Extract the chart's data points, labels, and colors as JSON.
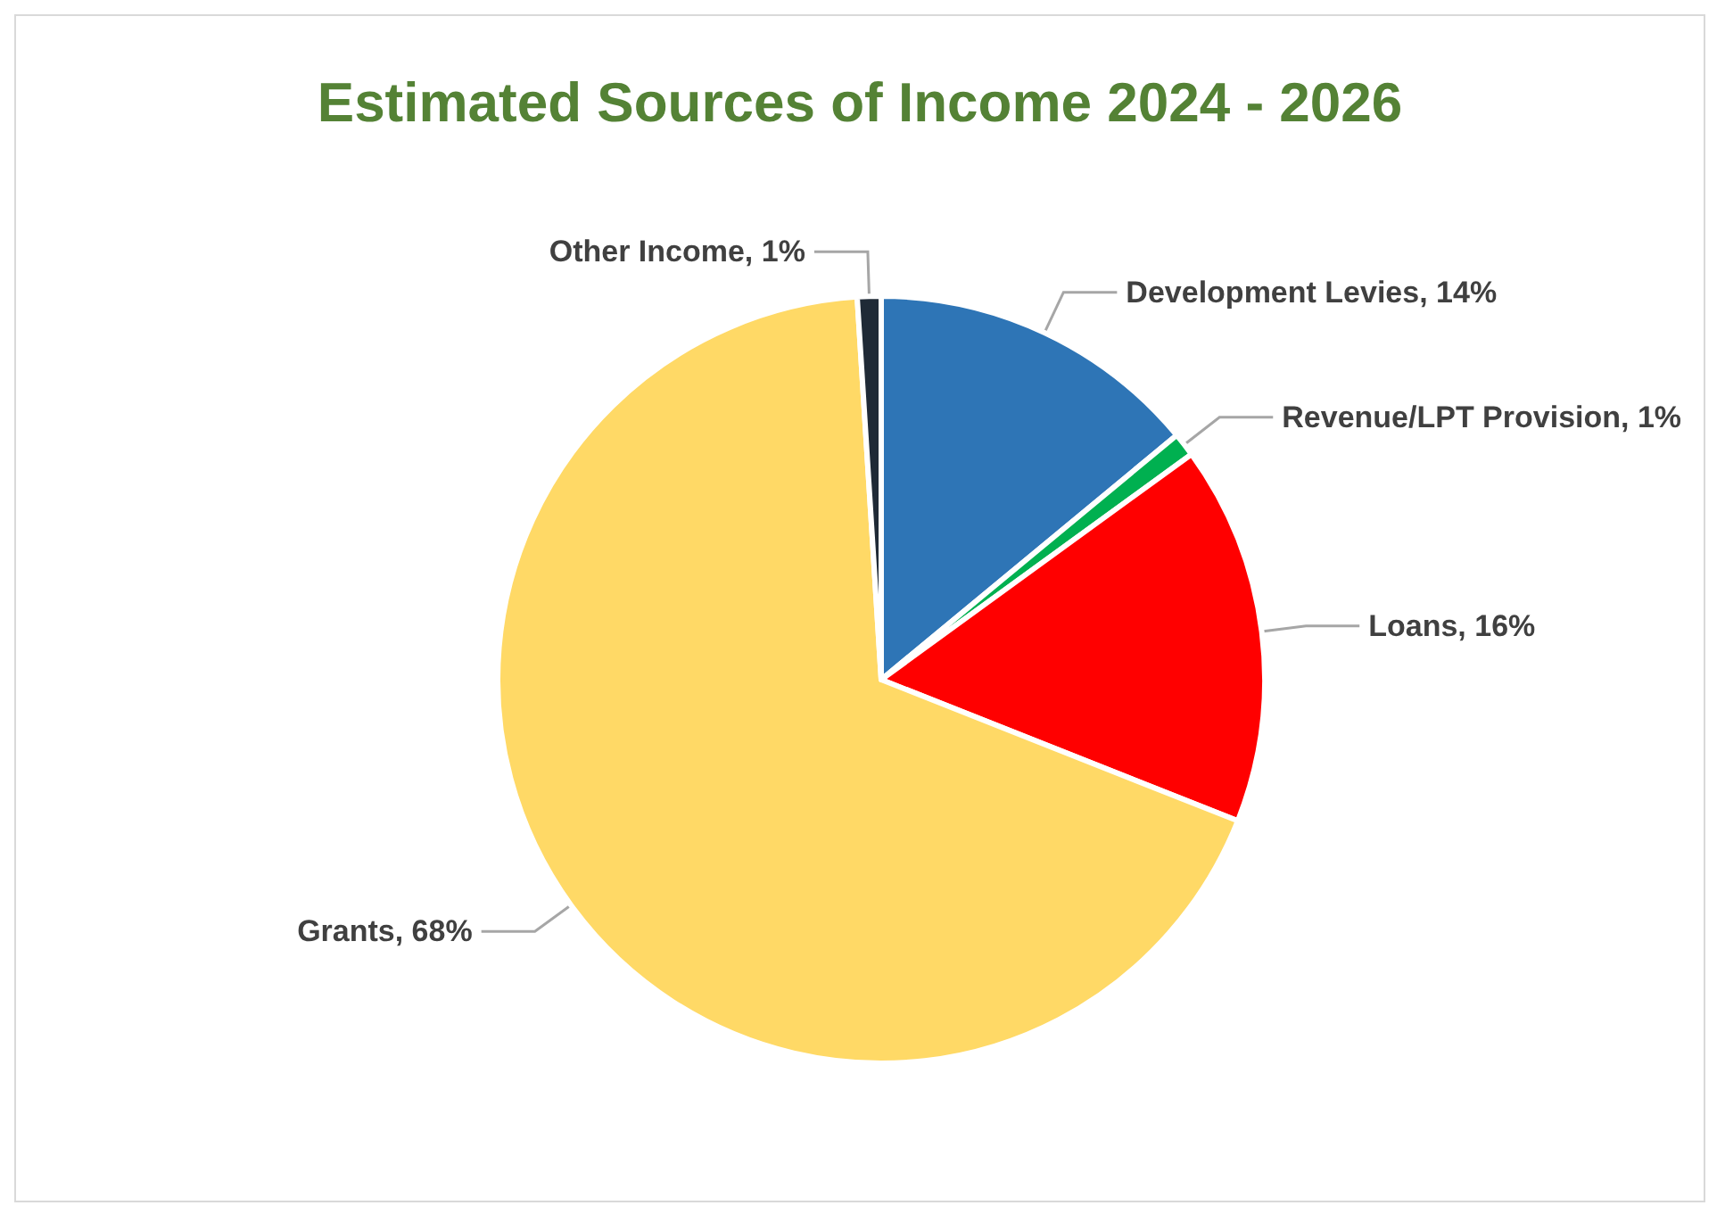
{
  "chart_data": {
    "type": "pie",
    "title": "Estimated Sources of Income 2024 - 2026",
    "categories": [
      "Development Levies",
      "Revenue/LPT Provision",
      "Loans",
      "Grants",
      "Other Income"
    ],
    "values": [
      14,
      1,
      16,
      68,
      1
    ],
    "colors": [
      "#2e75b6",
      "#00b050",
      "#ff0000",
      "#ffd966",
      "#1f2a36"
    ],
    "value_labels": [
      "14%",
      "1%",
      "16%",
      "68%",
      "1%"
    ],
    "legend": false
  }
}
